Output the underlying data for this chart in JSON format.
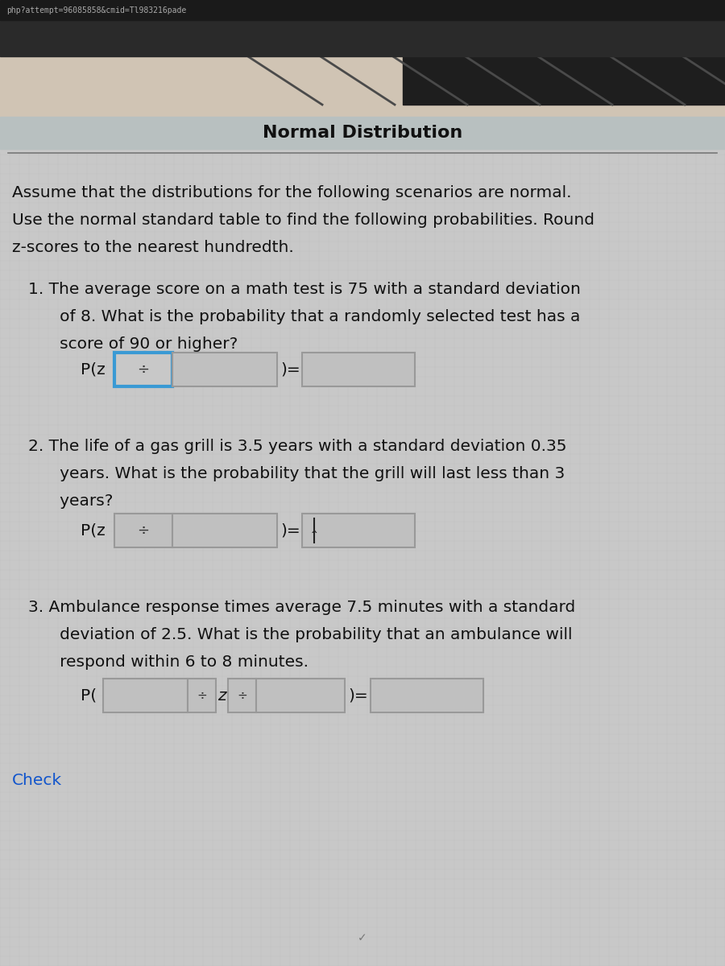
{
  "title": "Normal Distribution",
  "url_bar_text": "php?attempt=96085858&cmid=Tl983216pade",
  "intro_line1": "Assume that the distributions for the following scenarios are normal.",
  "intro_line2": "Use the normal standard table to find the following probabilities. Round",
  "intro_line3": "z-scores to the nearest hundredth.",
  "q1_line1": "1. The average score on a math test is 75 with a standard deviation",
  "q1_line2": "   of 8. What is the probability that a randomly selected test has a",
  "q1_line3": "   score of 90 or higher?",
  "q1_label": "P(z",
  "q1_equals": ")=",
  "q2_line1": "2. The life of a gas grill is 3.5 years with a standard deviation 0.35",
  "q2_line2": "   years. What is the probability that the grill will last less than 3",
  "q2_line3": "   years?",
  "q2_label": "P(z",
  "q2_equals": ")=",
  "q3_line1": "3. Ambulance response times average 7.5 minutes with a standard",
  "q3_line2": "   deviation of 2.5. What is the probability that an ambulance will",
  "q3_line3": "   respond within 6 to 8 minutes.",
  "q3_label": "P(",
  "q3_z": "z",
  "q3_equals": ")=",
  "check_text": "Check",
  "blue_border": "#3a9ad4",
  "gray_box_face": "#c0c0c0",
  "gray_box_edge": "#999999",
  "content_bg": "#c8c8c8",
  "header_beige": "#d0c4b4",
  "header_gray": "#b8c0c0",
  "top_bar": "#1a1a1a",
  "text_color": "#111111",
  "check_color": "#1155cc",
  "title_color": "#111111"
}
